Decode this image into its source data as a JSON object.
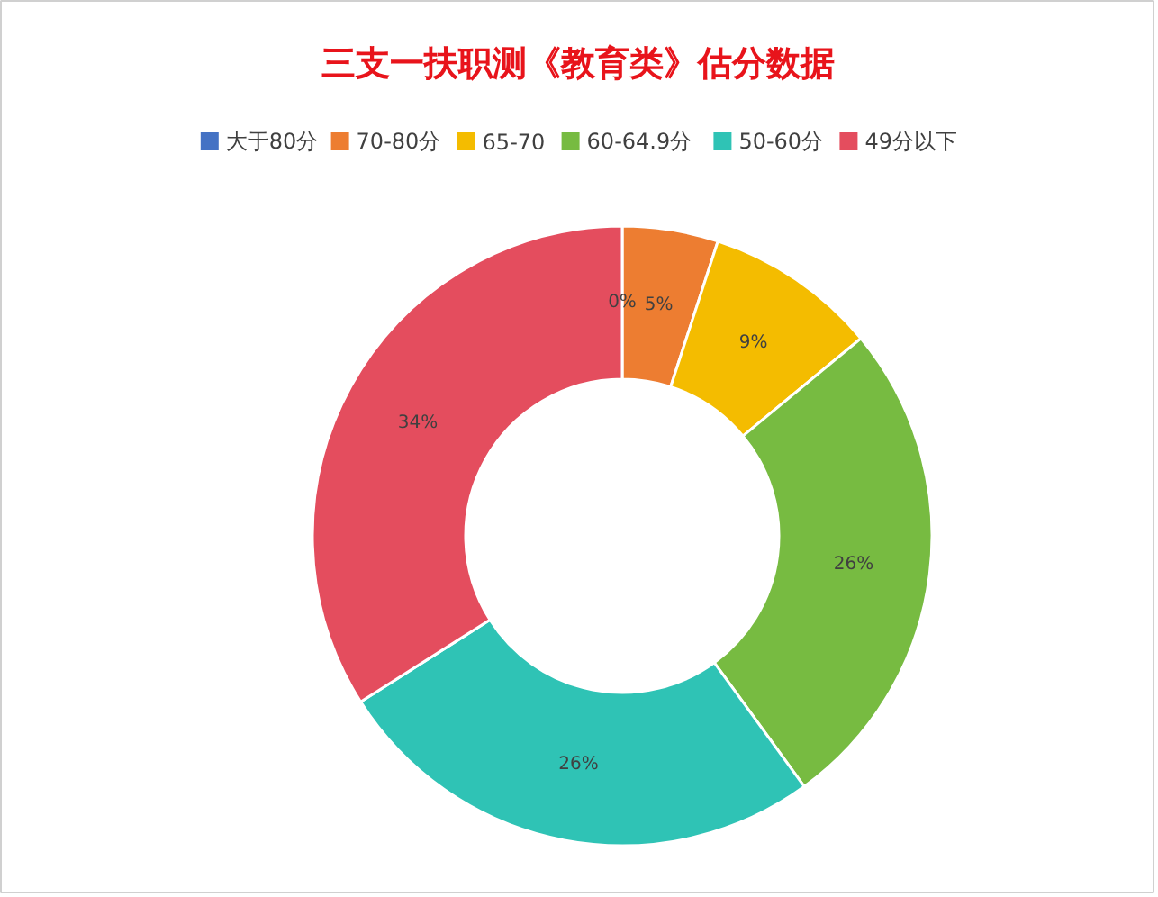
{
  "chart_data": {
    "type": "donut",
    "title": "三支一扶职测《教育类》估分数据",
    "categories": [
      "大于80分",
      "70-80分",
      "65-70",
      "60-64.9分",
      "50-60分",
      "49分以下"
    ],
    "values": [
      0,
      5,
      9,
      26,
      26,
      34
    ],
    "colors": [
      "#4472c4",
      "#ed7d31",
      "#f4bc00",
      "#77bb41",
      "#2fc3b5",
      "#e44d5e"
    ],
    "value_labels": [
      "0%",
      "5%",
      "9%",
      "26%",
      "26%",
      "34%"
    ],
    "legend": "top"
  }
}
